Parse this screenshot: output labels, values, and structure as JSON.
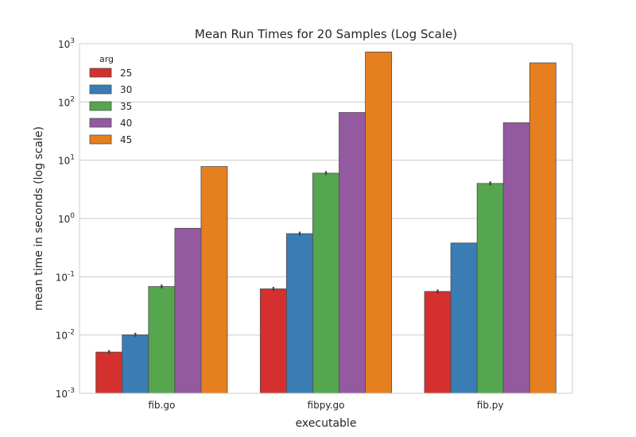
{
  "chart_data": {
    "type": "bar",
    "title": "Mean Run Times for 20 Samples (Log Scale)",
    "xlabel": "executable",
    "ylabel": "mean time in seconds (log scale)",
    "yscale": "log",
    "ylim": [
      0.001,
      1000
    ],
    "y_ticks": [
      {
        "value": 0.001,
        "base": "10",
        "exp": "-3"
      },
      {
        "value": 0.01,
        "base": "10",
        "exp": "-2"
      },
      {
        "value": 0.1,
        "base": "10",
        "exp": "-1"
      },
      {
        "value": 1,
        "base": "10",
        "exp": "0"
      },
      {
        "value": 10,
        "base": "10",
        "exp": "1"
      },
      {
        "value": 100,
        "base": "10",
        "exp": "2"
      },
      {
        "value": 1000,
        "base": "10",
        "exp": "3"
      }
    ],
    "grid": true,
    "categories": [
      "fib.go",
      "fibpy.go",
      "fib.py"
    ],
    "legend": {
      "title": "arg",
      "position": "top-left"
    },
    "series": [
      {
        "name": "25",
        "color": "#d3302f",
        "values": [
          0.0051,
          0.062,
          0.056
        ],
        "error_marker": [
          true,
          true,
          true
        ]
      },
      {
        "name": "30",
        "color": "#3a7db5",
        "values": [
          0.0101,
          0.55,
          0.38
        ],
        "error_marker": [
          true,
          true,
          false
        ]
      },
      {
        "name": "35",
        "color": "#55a64f",
        "values": [
          0.068,
          6.0,
          4.0
        ],
        "error_marker": [
          true,
          true,
          true
        ]
      },
      {
        "name": "40",
        "color": "#945a9f",
        "values": [
          0.68,
          66,
          44
        ],
        "error_marker": [
          false,
          false,
          false
        ]
      },
      {
        "name": "45",
        "color": "#e57f1f",
        "values": [
          7.8,
          720,
          470
        ],
        "error_marker": [
          false,
          false,
          false
        ]
      }
    ]
  }
}
